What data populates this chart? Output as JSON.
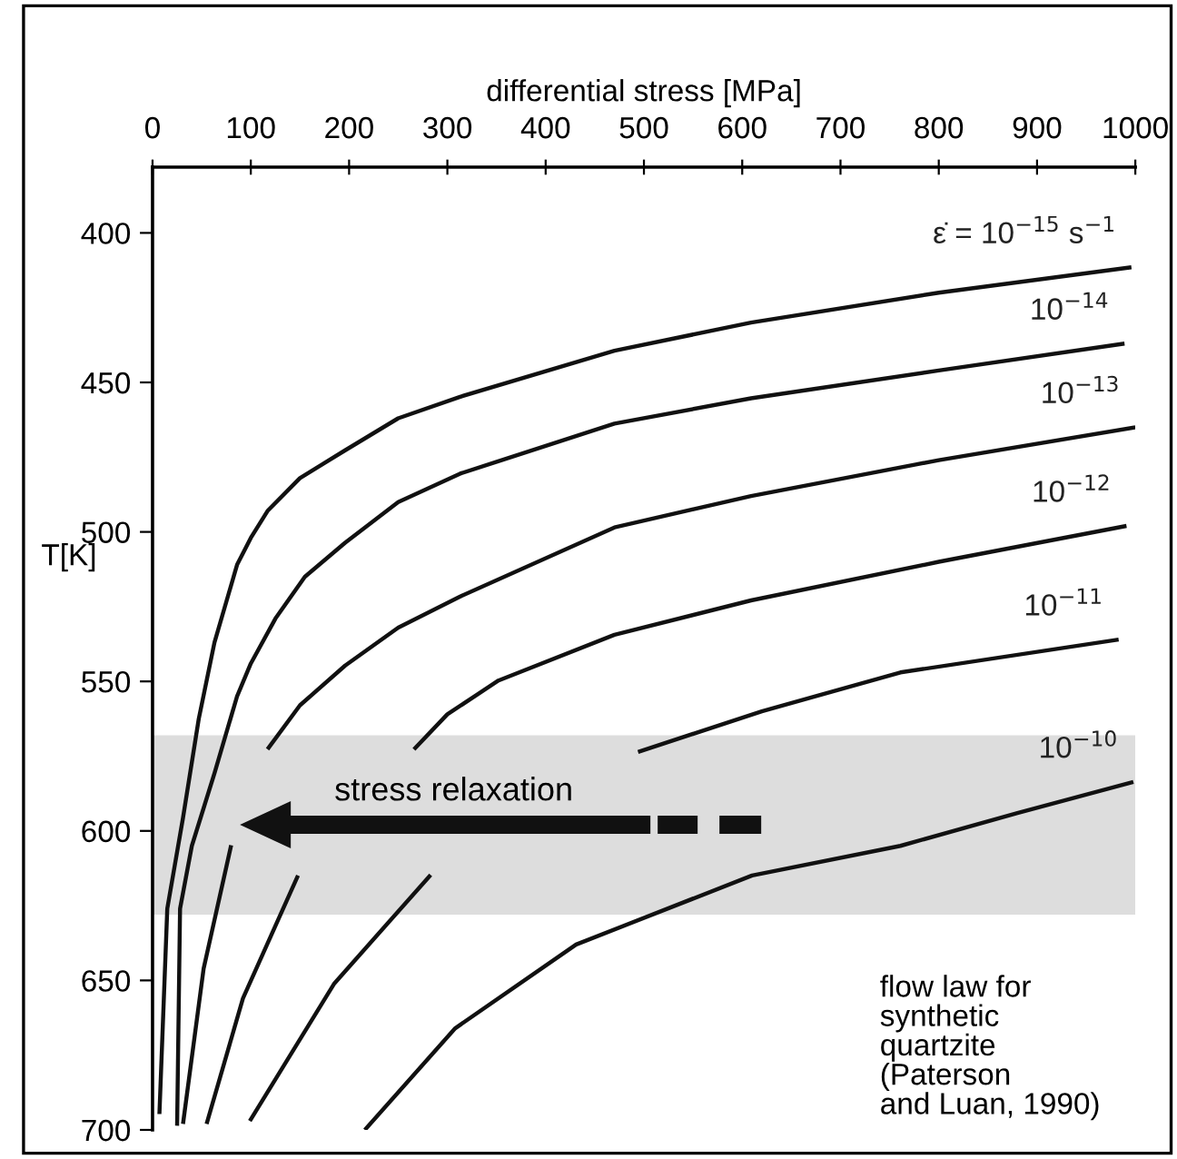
{
  "chart_data": {
    "type": "line",
    "xlabel": "differential stress [MPa]",
    "ylabel": "T[K]",
    "xlim": [
      0,
      1000
    ],
    "ylim": [
      700,
      378
    ],
    "xticks": [
      0,
      100,
      200,
      300,
      400,
      500,
      600,
      700,
      800,
      900,
      1000
    ],
    "yticks": [
      400,
      450,
      500,
      550,
      600,
      650,
      700
    ],
    "line_style": "solid",
    "bands": [
      {
        "axis": "y",
        "from": 568,
        "to": 628,
        "color": "#dddddd"
      }
    ],
    "series": [
      {
        "name": "ε̇ = 10$^{−15}$ s$^{−1}$",
        "color": "#111111",
        "x": [
          996,
          800,
          609,
          470,
          313,
          250,
          196,
          150,
          117,
          100,
          86,
          63,
          47,
          31,
          15,
          7
        ],
        "values": [
          411.5,
          420,
          430,
          439.4,
          454.8,
          462,
          472.7,
          482,
          493,
          502,
          511,
          537,
          562.6,
          595.6,
          626,
          694.7
        ]
      },
      {
        "name": "10$^{−14}$",
        "color": "#111111",
        "x": [
          989,
          800,
          609,
          470,
          313,
          250,
          196,
          155,
          125,
          100,
          86,
          63,
          40,
          28,
          25
        ],
        "values": [
          437,
          446,
          455.3,
          463.8,
          480.5,
          490,
          503.6,
          515,
          529,
          544,
          555,
          580.7,
          605,
          626,
          698.6
        ]
      },
      {
        "name": "10$^{−13}$",
        "color": "#111111",
        "x": [
          1000,
          800,
          609,
          470,
          313,
          250,
          196,
          150,
          117,
          null,
          80,
          52,
          31
        ],
        "values": [
          465,
          476,
          488,
          498.5,
          521.6,
          532,
          544.7,
          558,
          572.7,
          null,
          604.8,
          646,
          698
        ]
      },
      {
        "name": "10$^{−12}$",
        "color": "#111111",
        "x": [
          991,
          800,
          609,
          470,
          352,
          300,
          266,
          null,
          148,
          92,
          55
        ],
        "values": [
          498,
          510,
          522.9,
          534.4,
          549.7,
          561,
          572.7,
          null,
          614.9,
          656,
          698
        ]
      },
      {
        "name": "10$^{−11}$",
        "color": "#111111",
        "x": [
          983,
          761,
          620,
          494,
          null,
          283,
          185,
          99
        ],
        "values": [
          536,
          547,
          560,
          573.6,
          null,
          614.7,
          651,
          697
        ]
      },
      {
        "name": "10$^{−10}$",
        "color": "#111111",
        "x": [
          998,
          880,
          761,
          610,
          431,
          308,
          216
        ],
        "values": [
          583.6,
          594,
          605,
          614.9,
          638,
          666,
          700
        ]
      }
    ],
    "annotations": [
      "stress relaxation",
      "flow law for\nsynthetic\nquartzite\n(Paterson\nand Luan, 1990)"
    ]
  }
}
